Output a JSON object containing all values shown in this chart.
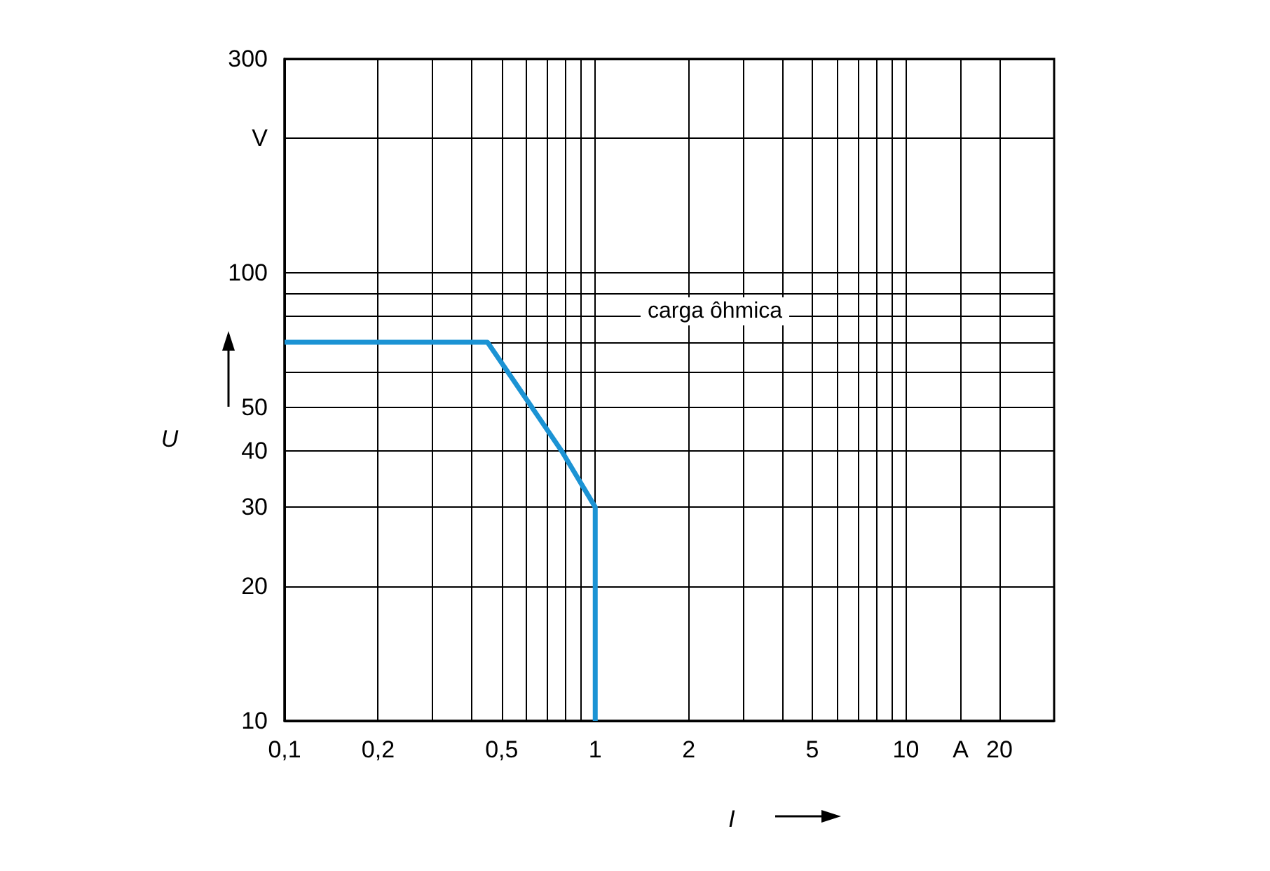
{
  "chart_data": {
    "type": "line",
    "xlabel": "I",
    "ylabel": "U",
    "log": "xy",
    "grid": true,
    "marker": "none",
    "line_style": "solid",
    "x": [
      0.1,
      0.45,
      0.78,
      1,
      1
    ],
    "series": [
      {
        "color": "#1b93d4",
        "values": [
          70,
          70,
          40,
          30,
          10
        ]
      }
    ],
    "xlim": [
      0.1,
      30
    ],
    "ylim": [
      10,
      300
    ],
    "xticks": [
      {
        "value": 0.1,
        "label": "0,1"
      },
      {
        "value": 0.2,
        "label": "0,2"
      },
      {
        "value": 0.3,
        "label": null
      },
      {
        "value": 0.4,
        "label": null
      },
      {
        "value": 0.5,
        "label": "0,5"
      },
      {
        "value": 0.6,
        "label": null
      },
      {
        "value": 0.7,
        "label": null
      },
      {
        "value": 0.8,
        "label": null
      },
      {
        "value": 0.9,
        "label": null
      },
      1,
      2,
      {
        "value": 3,
        "label": null
      },
      {
        "value": 4,
        "label": null
      },
      5,
      {
        "value": 6,
        "label": null
      },
      {
        "value": 7,
        "label": null
      },
      {
        "value": 8,
        "label": null
      },
      {
        "value": 9,
        "label": null
      },
      10,
      {
        "value": 15,
        "label": "A"
      },
      20
    ],
    "yticks": [
      10,
      20,
      30,
      40,
      50,
      {
        "value": 60,
        "label": null
      },
      {
        "value": 70,
        "label": null
      },
      {
        "value": 80,
        "label": null
      },
      {
        "value": 90,
        "label": null
      },
      100,
      {
        "value": 200,
        "label": "V"
      },
      300
    ],
    "annotations": [
      "carga ôhmica"
    ]
  }
}
